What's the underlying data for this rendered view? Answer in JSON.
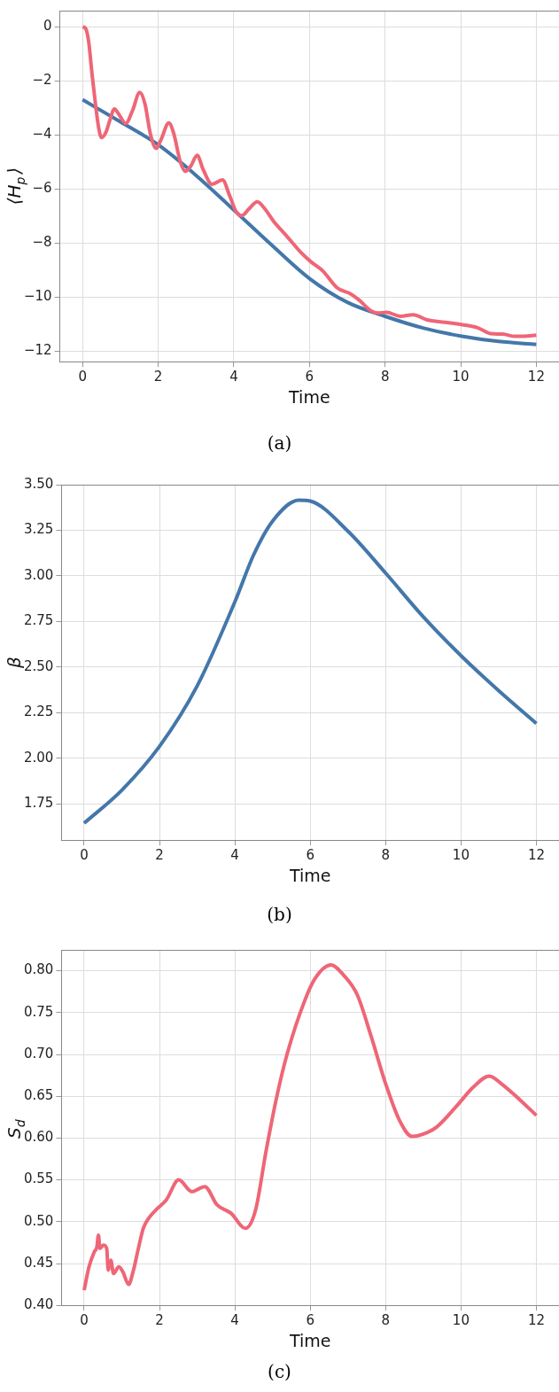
{
  "chart_data": [
    {
      "type": "line",
      "xlabel": "Time",
      "ylabel": "⟨H$_{p}$⟩",
      "xlim": [
        -0.6,
        12.6
      ],
      "xticks": [
        0,
        2,
        4,
        6,
        8,
        10,
        12
      ],
      "ylim": [
        -12.4,
        0.6
      ],
      "yticks": [
        {
          "value": -12,
          "label": "−12"
        },
        {
          "value": -10,
          "label": "−10"
        },
        {
          "value": -8,
          "label": "−8"
        },
        {
          "value": -6,
          "label": "−6"
        },
        {
          "value": -4,
          "label": "−4"
        },
        {
          "value": -2,
          "label": "−2"
        },
        0
      ],
      "grid": true,
      "marker": "none",
      "annotations": [
        "(a)"
      ],
      "series": [
        {
          "color": "#ee6677",
          "x": [
            0,
            0.08,
            0.16,
            0.25,
            0.35,
            0.42,
            0.5,
            0.62,
            0.72,
            0.84,
            0.95,
            1.14,
            1.32,
            1.51,
            1.65,
            1.79,
            1.95,
            2.07,
            2.28,
            2.41,
            2.58,
            2.72,
            2.86,
            3.03,
            3.19,
            3.42,
            3.7,
            3.89,
            4.07,
            4.21,
            4.4,
            4.62,
            4.82,
            5.05,
            5.38,
            5.75,
            6.03,
            6.36,
            6.73,
            7.1,
            7.34,
            7.62,
            7.8,
            8.04,
            8.41,
            8.74,
            9.11,
            9.58,
            10.04,
            10.46,
            10.79,
            11.11,
            11.44,
            11.67,
            12
          ],
          "values": [
            0,
            -0.06,
            -0.55,
            -1.76,
            -2.98,
            -3.7,
            -4.1,
            -3.89,
            -3.46,
            -3.04,
            -3.22,
            -3.58,
            -3.1,
            -2.43,
            -2.86,
            -3.95,
            -4.5,
            -4.19,
            -3.56,
            -3.95,
            -4.98,
            -5.35,
            -5.16,
            -4.76,
            -5.29,
            -5.83,
            -5.67,
            -6.26,
            -6.87,
            -6.99,
            -6.74,
            -6.48,
            -6.74,
            -7.2,
            -7.72,
            -8.32,
            -8.69,
            -9.05,
            -9.66,
            -9.9,
            -10.15,
            -10.51,
            -10.6,
            -10.57,
            -10.72,
            -10.66,
            -10.85,
            -10.94,
            -11.03,
            -11.15,
            -11.36,
            -11.38,
            -11.46,
            -11.46,
            -11.42
          ]
        },
        {
          "color": "#4477aa",
          "x": [
            0,
            1,
            2,
            3,
            4,
            5,
            6,
            7,
            8,
            9,
            10,
            11,
            12
          ],
          "values": [
            -2.7,
            -3.52,
            -4.37,
            -5.5,
            -6.78,
            -8.08,
            -9.32,
            -10.2,
            -10.72,
            -11.15,
            -11.45,
            -11.65,
            -11.76
          ]
        }
      ]
    },
    {
      "type": "line",
      "xlabel": "Time",
      "ylabel": "β",
      "xlim": [
        -0.6,
        12.6
      ],
      "xticks": [
        0,
        2,
        4,
        6,
        8,
        10,
        12
      ],
      "ylim": [
        1.55,
        3.5
      ],
      "yticks": [
        1.75,
        {
          "value": 2,
          "label": "2.00"
        },
        2.25,
        {
          "value": 2.5,
          "label": "2.50"
        },
        2.75,
        {
          "value": 3,
          "label": "3.00"
        },
        3.25,
        {
          "value": 3.5,
          "label": "3.50"
        }
      ],
      "grid": true,
      "marker": "none",
      "annotations": [
        "(b)"
      ],
      "series": [
        {
          "color": "#4477aa",
          "x": [
            0,
            1,
            2,
            3,
            4,
            4.5,
            5,
            5.7,
            6,
            7,
            8,
            9,
            10,
            11,
            12
          ],
          "values": [
            1.643,
            1.824,
            2.064,
            2.396,
            2.857,
            3.116,
            3.3,
            3.415,
            3.41,
            3.245,
            3.015,
            2.775,
            2.562,
            2.37,
            2.19
          ]
        }
      ]
    },
    {
      "type": "line",
      "xlabel": "Time",
      "ylabel": "S$_{d}$",
      "xlim": [
        -0.6,
        12.6
      ],
      "xticks": [
        0,
        2,
        4,
        6,
        8,
        10,
        12
      ],
      "ylim": [
        0.4,
        0.825
      ],
      "yticks": [
        {
          "value": 0.4,
          "label": "0.40"
        },
        0.45,
        {
          "value": 0.5,
          "label": "0.50"
        },
        0.55,
        {
          "value": 0.6,
          "label": "0.60"
        },
        0.65,
        {
          "value": 0.7,
          "label": "0.70"
        },
        0.75,
        {
          "value": 0.8,
          "label": "0.80"
        }
      ],
      "grid": true,
      "marker": "none",
      "annotations": [
        "(c)"
      ],
      "series": [
        {
          "color": "#ee6677",
          "x": [
            0,
            0.13,
            0.27,
            0.34,
            0.38,
            0.42,
            0.51,
            0.6,
            0.64,
            0.71,
            0.78,
            0.92,
            1.03,
            1.18,
            1.31,
            1.43,
            1.57,
            1.71,
            1.95,
            2.18,
            2.51,
            2.86,
            3.2,
            3.53,
            3.9,
            4.28,
            4.55,
            4.83,
            5.11,
            5.39,
            5.86,
            6.13,
            6.55,
            6.88,
            7.25,
            7.62,
            8,
            8.37,
            8.7,
            9.12,
            9.35,
            9.86,
            10.33,
            10.75,
            11.07,
            11.58,
            12
          ],
          "values": [
            0.418,
            0.446,
            0.464,
            0.47,
            0.484,
            0.468,
            0.472,
            0.468,
            0.442,
            0.454,
            0.438,
            0.446,
            0.44,
            0.425,
            0.442,
            0.466,
            0.492,
            0.504,
            0.516,
            0.526,
            0.55,
            0.536,
            0.542,
            0.52,
            0.51,
            0.492,
            0.514,
            0.585,
            0.649,
            0.701,
            0.765,
            0.791,
            0.807,
            0.795,
            0.771,
            0.721,
            0.665,
            0.621,
            0.602,
            0.607,
            0.613,
            0.637,
            0.661,
            0.674,
            0.665,
            0.645,
            0.627
          ]
        }
      ]
    }
  ]
}
